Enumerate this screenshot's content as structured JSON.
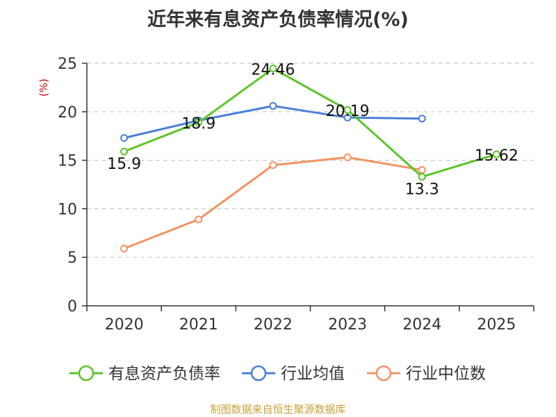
{
  "chart_data": {
    "type": "line",
    "title": "近年来有息资产负债率情况(%)",
    "ylabel": "(%)",
    "xlabel": "",
    "categories": [
      "2020",
      "2021",
      "2022",
      "2023",
      "2024",
      "2025"
    ],
    "ylim": [
      0,
      25
    ],
    "yticks": [
      0,
      5,
      10,
      15,
      20,
      25
    ],
    "grid": "horizontal-dashed",
    "legend_position": "bottom",
    "series": [
      {
        "name": "有息资产负债率",
        "color": "#5cc428",
        "values": [
          15.9,
          18.9,
          24.46,
          20.19,
          13.3,
          15.62
        ],
        "labels": [
          "15.9",
          "18.9",
          "24.46",
          "20.19",
          "13.3",
          "15.62"
        ]
      },
      {
        "name": "行业均值",
        "color": "#4a7fd8",
        "values": [
          17.3,
          19.1,
          20.6,
          19.4,
          19.3,
          null
        ]
      },
      {
        "name": "行业中位数",
        "color": "#f39360",
        "values": [
          5.9,
          8.9,
          14.5,
          15.3,
          14.0,
          null
        ]
      }
    ]
  },
  "footer": {
    "source": "制图数据来自恒生聚源数据库"
  }
}
